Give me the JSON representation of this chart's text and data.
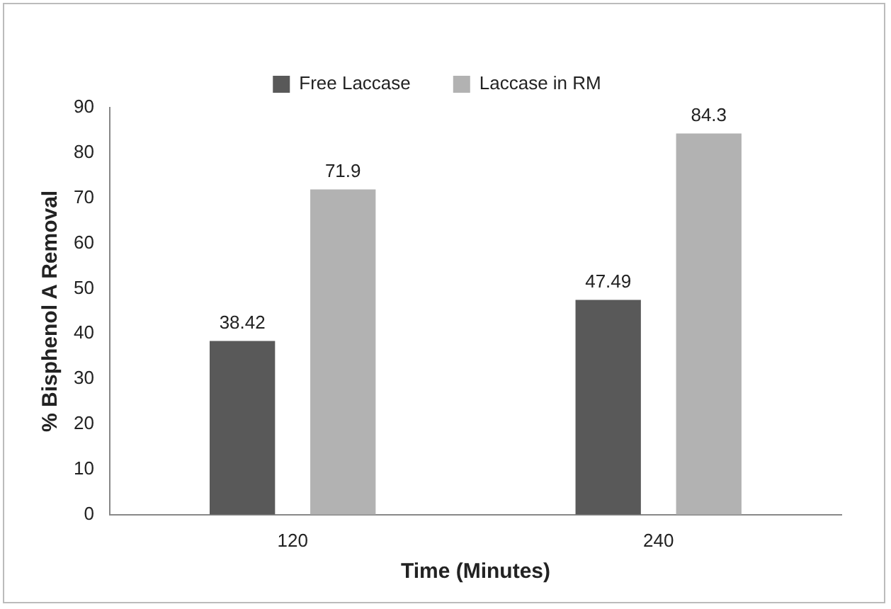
{
  "chart_data": {
    "type": "bar",
    "xlabel": "Time (Minutes)",
    "ylabel": "% Bisphenol A Removal",
    "categories": [
      "120",
      "240"
    ],
    "series": [
      {
        "name": "Free Laccase",
        "color": "#595959",
        "values": [
          38.42,
          47.49
        ]
      },
      {
        "name": "Laccase in RM",
        "color": "#b2b2b2",
        "values": [
          71.9,
          84.3
        ]
      }
    ],
    "ylim": [
      0,
      90
    ],
    "yticks": [
      0,
      10,
      20,
      30,
      40,
      50,
      60,
      70,
      80,
      90
    ],
    "grid": false,
    "legend": "top",
    "data_labels": true
  }
}
